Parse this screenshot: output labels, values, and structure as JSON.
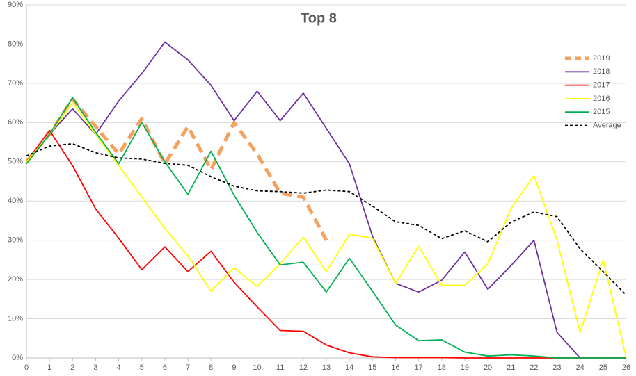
{
  "chart_data": {
    "type": "line",
    "title": "Top 8",
    "x": [
      0,
      1,
      2,
      3,
      4,
      5,
      6,
      7,
      8,
      9,
      10,
      11,
      12,
      13,
      14,
      15,
      16,
      17,
      18,
      19,
      20,
      21,
      22,
      23,
      24,
      25,
      26
    ],
    "xlim": [
      0,
      26
    ],
    "xticks": [
      0,
      1,
      2,
      3,
      4,
      5,
      6,
      7,
      8,
      9,
      10,
      11,
      12,
      13,
      14,
      15,
      16,
      17,
      18,
      19,
      20,
      21,
      22,
      23,
      24,
      25,
      26
    ],
    "ylim": [
      0,
      90
    ],
    "yticks": [
      {
        "value": 0,
        "label": "0%"
      },
      {
        "value": 10,
        "label": "10%"
      },
      {
        "value": 20,
        "label": "20%"
      },
      {
        "value": 30,
        "label": "30%"
      },
      {
        "value": 40,
        "label": "40%"
      },
      {
        "value": 50,
        "label": "50%"
      },
      {
        "value": 60,
        "label": "60%"
      },
      {
        "value": 70,
        "label": "70%"
      },
      {
        "value": 80,
        "label": "80%"
      },
      {
        "value": 90,
        "label": "90%"
      }
    ],
    "grid": true,
    "legend": "top-right",
    "series": [
      {
        "name": "2019",
        "color": "#f4a15d",
        "line_style": "dashed",
        "width": 5,
        "values": [
          50,
          57,
          66,
          59,
          52,
          61,
          49.5,
          59,
          48,
          60,
          52,
          42,
          41,
          30,
          null,
          null,
          null,
          null,
          null,
          null,
          null,
          null,
          null,
          null,
          null,
          null,
          null
        ]
      },
      {
        "name": "2018",
        "color": "#7030a0",
        "line_style": "solid",
        "width": 1.8,
        "values": [
          50,
          57,
          63.5,
          57,
          65.5,
          72.5,
          80.5,
          76,
          69.5,
          60.5,
          68,
          60.5,
          67.5,
          58.5,
          49.5,
          31,
          19,
          16.8,
          19.8,
          27,
          17.5,
          23.5,
          30,
          6.5,
          0,
          null,
          null
        ]
      },
      {
        "name": "2017",
        "color": "#ff0000",
        "line_style": "solid",
        "width": 1.8,
        "values": [
          50,
          58,
          49,
          38,
          30.5,
          22.5,
          28.3,
          22,
          27.2,
          19.3,
          13,
          7,
          6.8,
          3.3,
          1.3,
          0.3,
          0.1,
          0.1,
          0.1,
          0,
          0,
          0,
          0,
          0,
          0,
          0,
          0
        ]
      },
      {
        "name": "2016",
        "color": "#ffff00",
        "line_style": "solid",
        "width": 1.8,
        "values": [
          50,
          57,
          65,
          57,
          49,
          41,
          33,
          26,
          17,
          23,
          18.2,
          24,
          30.8,
          22,
          31.5,
          30.5,
          19,
          28.5,
          18.5,
          18.5,
          24,
          38,
          46.5,
          30,
          6.5,
          25,
          0
        ]
      },
      {
        "name": "2015",
        "color": "#00b050",
        "line_style": "solid",
        "width": 1.8,
        "values": [
          49.5,
          57,
          66.3,
          57.5,
          49.5,
          60,
          50,
          41.7,
          52.7,
          41.5,
          32,
          23.7,
          24.4,
          16.8,
          25.4,
          17,
          8.4,
          4.4,
          4.6,
          1.5,
          0.5,
          0.8,
          0.5,
          0,
          0,
          0,
          0
        ]
      },
      {
        "name": "Average",
        "color": "#000000",
        "line_style": "dashed",
        "width": 1.8,
        "values": [
          51.5,
          54,
          54.6,
          52.3,
          51,
          50.7,
          49.6,
          49.1,
          46.2,
          43.8,
          42.6,
          42.4,
          42,
          42.8,
          42.4,
          38.7,
          34.7,
          33.8,
          30.4,
          32.4,
          29.6,
          34.6,
          37.2,
          36,
          27.8,
          22,
          16
        ]
      }
    ]
  }
}
